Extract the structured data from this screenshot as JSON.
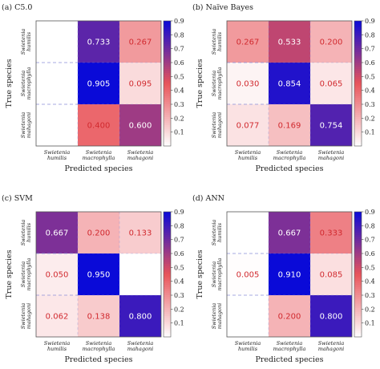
{
  "colormap": {
    "low": "#ffffff",
    "mid": "#e8545a",
    "high": "#0a0ad8"
  },
  "colorbar_ticks": [
    "0.1",
    "0.2",
    "0.3",
    "0.4",
    "0.5",
    "0.6",
    "0.7",
    "0.8",
    "0.9"
  ],
  "chart_data": [
    {
      "type": "heatmap",
      "title": "(a) C5.0",
      "xlabel": "Predicted species",
      "ylabel": "True species",
      "x_categories": [
        "Swietenia humilis",
        "Swietenia macrophylla",
        "Swietenia mahagoni"
      ],
      "y_categories": [
        "Swietenia humilis",
        "Swietenia macrophylla",
        "Swietenia mahagoni"
      ],
      "values": [
        [
          null,
          0.733,
          0.267
        ],
        [
          null,
          0.905,
          0.095
        ],
        [
          null,
          0.4,
          0.6
        ]
      ],
      "labels": [
        [
          "",
          "0.733",
          "0.267"
        ],
        [
          "",
          "0.905",
          "0.095"
        ],
        [
          "",
          "0.400",
          "0.600"
        ]
      ],
      "colorbar_range": [
        0,
        0.9
      ]
    },
    {
      "type": "heatmap",
      "title": "(b) Naïve Bayes",
      "xlabel": "Predicted species",
      "ylabel": "True species",
      "x_categories": [
        "Swietenia humilis",
        "Swietenia macrophylla",
        "Swietenia mahagoni"
      ],
      "y_categories": [
        "Swietenia humilis",
        "Swietenia macrophylla",
        "Swietenia mahagoni"
      ],
      "values": [
        [
          0.267,
          0.533,
          0.2
        ],
        [
          0.03,
          0.854,
          0.065
        ],
        [
          0.077,
          0.169,
          0.754
        ]
      ],
      "labels": [
        [
          "0.267",
          "0.533",
          "0.200"
        ],
        [
          "0.030",
          "0.854",
          "0.065"
        ],
        [
          "0.077",
          "0.169",
          "0.754"
        ]
      ],
      "colorbar_range": [
        0,
        0.9
      ]
    },
    {
      "type": "heatmap",
      "title": "(c) SVM",
      "xlabel": "Predicted species",
      "ylabel": "True species",
      "x_categories": [
        "Swietenia humilis",
        "Swietenia macrophylla",
        "Swietenia mahagoni"
      ],
      "y_categories": [
        "Swietenia humilis",
        "Swietenia macrophylla",
        "Swietenia mahagoni"
      ],
      "values": [
        [
          0.667,
          0.2,
          0.133
        ],
        [
          0.05,
          0.95,
          null
        ],
        [
          0.062,
          0.138,
          0.8
        ]
      ],
      "labels": [
        [
          "0.667",
          "0.200",
          "0.133"
        ],
        [
          "0.050",
          "0.950",
          ""
        ],
        [
          "0.062",
          "0.138",
          "0.800"
        ]
      ],
      "colorbar_range": [
        0,
        0.9
      ]
    },
    {
      "type": "heatmap",
      "title": "(d) ANN",
      "xlabel": "Predicted species",
      "ylabel": "True species",
      "x_categories": [
        "Swietenia humilis",
        "Swietenia macrophylla",
        "Swietenia mahagoni"
      ],
      "y_categories": [
        "Swietenia humilis",
        "Swietenia macrophylla",
        "Swietenia mahagoni"
      ],
      "values": [
        [
          null,
          0.667,
          0.333
        ],
        [
          0.005,
          0.91,
          0.085
        ],
        [
          null,
          0.2,
          0.8
        ]
      ],
      "labels": [
        [
          "",
          "0.667",
          "0.333"
        ],
        [
          "0.005",
          "0.910",
          "0.085"
        ],
        [
          "",
          "0.200",
          "0.800"
        ]
      ],
      "colorbar_range": [
        0,
        0.9
      ]
    }
  ]
}
